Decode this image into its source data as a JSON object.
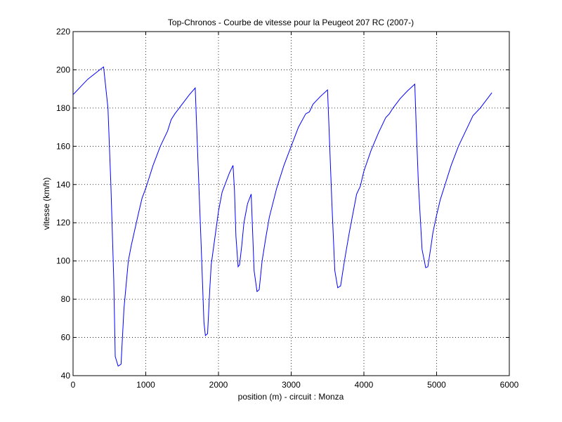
{
  "chart_data": {
    "type": "line",
    "title": "Top-Chronos - Courbe de vitesse pour la Peugeot 207 RC (2007-)",
    "xlabel": "position (m) - circuit : Monza",
    "ylabel": "vitesse (km/h)",
    "xlim": [
      0,
      6000
    ],
    "ylim": [
      40,
      220
    ],
    "xticks": [
      0,
      1000,
      2000,
      3000,
      4000,
      5000,
      6000
    ],
    "yticks": [
      40,
      60,
      80,
      100,
      120,
      140,
      160,
      180,
      200,
      220
    ],
    "grid": true,
    "line_color": "#0000ff",
    "series": [
      {
        "x": [
          0,
          100,
          200,
          300,
          400,
          420,
          480,
          520,
          560,
          580,
          620,
          660,
          700,
          760,
          800,
          900,
          950,
          1000,
          1100,
          1200,
          1300,
          1350,
          1400,
          1500,
          1600,
          1680,
          1720,
          1760,
          1800,
          1820,
          1850,
          1880,
          1900,
          1950,
          2000,
          2050,
          2100,
          2150,
          2200,
          2220,
          2240,
          2270,
          2290,
          2320,
          2350,
          2400,
          2450,
          2470,
          2490,
          2530,
          2560,
          2600,
          2650,
          2700,
          2800,
          2900,
          3000,
          3100,
          3200,
          3250,
          3300,
          3400,
          3500,
          3520,
          3560,
          3600,
          3640,
          3680,
          3720,
          3750,
          3800,
          3850,
          3900,
          3950,
          4000,
          4100,
          4200,
          4300,
          4350,
          4400,
          4500,
          4600,
          4700,
          4720,
          4750,
          4800,
          4850,
          4880,
          4920,
          4950,
          5000,
          5050,
          5100,
          5200,
          5300,
          5400,
          5450,
          5500,
          5600,
          5700,
          5760
        ],
        "y": [
          187,
          191,
          195,
          198,
          201,
          201.5,
          180,
          140,
          90,
          50,
          45,
          46,
          75,
          100,
          108,
          125,
          133,
          138,
          150,
          160,
          168,
          174,
          177,
          182,
          187,
          190.5,
          150,
          110,
          68,
          61,
          62,
          85,
          98,
          112,
          126,
          136,
          141,
          146,
          150,
          137,
          113,
          97,
          98,
          108,
          120,
          130,
          135,
          115,
          95,
          84,
          85,
          100,
          112,
          123,
          138,
          150,
          160,
          170,
          177,
          178,
          182,
          186,
          189.5,
          170,
          130,
          95,
          86,
          87,
          97,
          104,
          115,
          125,
          135,
          139,
          147,
          158,
          167,
          175,
          177,
          180,
          185,
          189,
          192.5,
          170,
          140,
          106,
          96.5,
          97,
          107,
          115,
          124,
          132,
          138,
          150,
          160,
          168,
          172,
          176,
          180,
          185,
          188
        ]
      }
    ]
  }
}
